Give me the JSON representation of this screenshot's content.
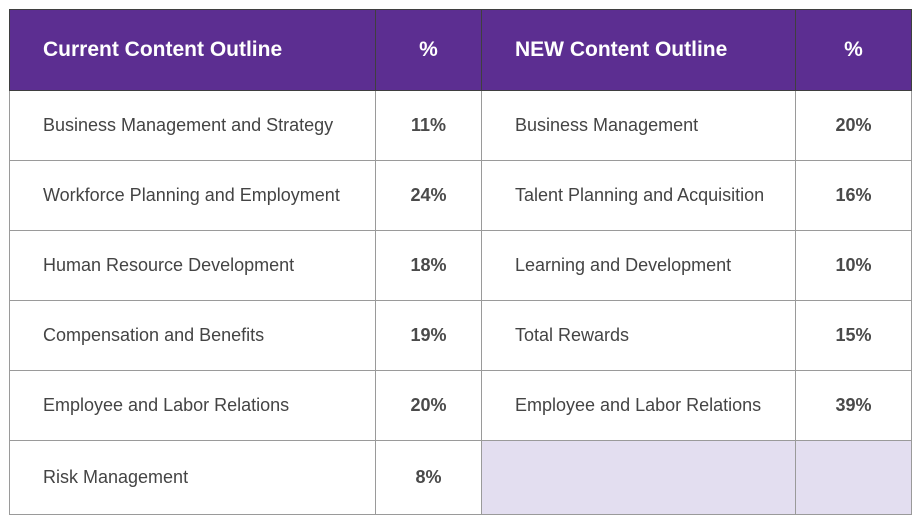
{
  "header": {
    "current_title": "Current Content Outline",
    "current_pct": "%",
    "new_title": "NEW Content Outline",
    "new_pct": "%"
  },
  "rows": [
    {
      "current_name": "Business Management and Strategy",
      "current_pct": "11%",
      "new_name": "Business Management",
      "new_pct": "20%"
    },
    {
      "current_name": "Workforce Planning and Employment",
      "current_pct": "24%",
      "new_name": "Talent Planning and Acquisition",
      "new_pct": "16%"
    },
    {
      "current_name": "Human Resource Development",
      "current_pct": "18%",
      "new_name": "Learning and Development",
      "new_pct": "10%"
    },
    {
      "current_name": "Compensation and Benefits",
      "current_pct": "19%",
      "new_name": "Total Rewards",
      "new_pct": "15%"
    },
    {
      "current_name": "Employee and Labor Relations",
      "current_pct": "20%",
      "new_name": "Employee and Labor Relations",
      "new_pct": "39%"
    },
    {
      "current_name": "Risk Management",
      "current_pct": "8%",
      "new_name": "",
      "new_pct": ""
    }
  ],
  "colors": {
    "header_bg": "#5c2e91",
    "header_text": "#ffffff",
    "empty_cell_bg": "#e3def0",
    "body_text": "#444444"
  }
}
